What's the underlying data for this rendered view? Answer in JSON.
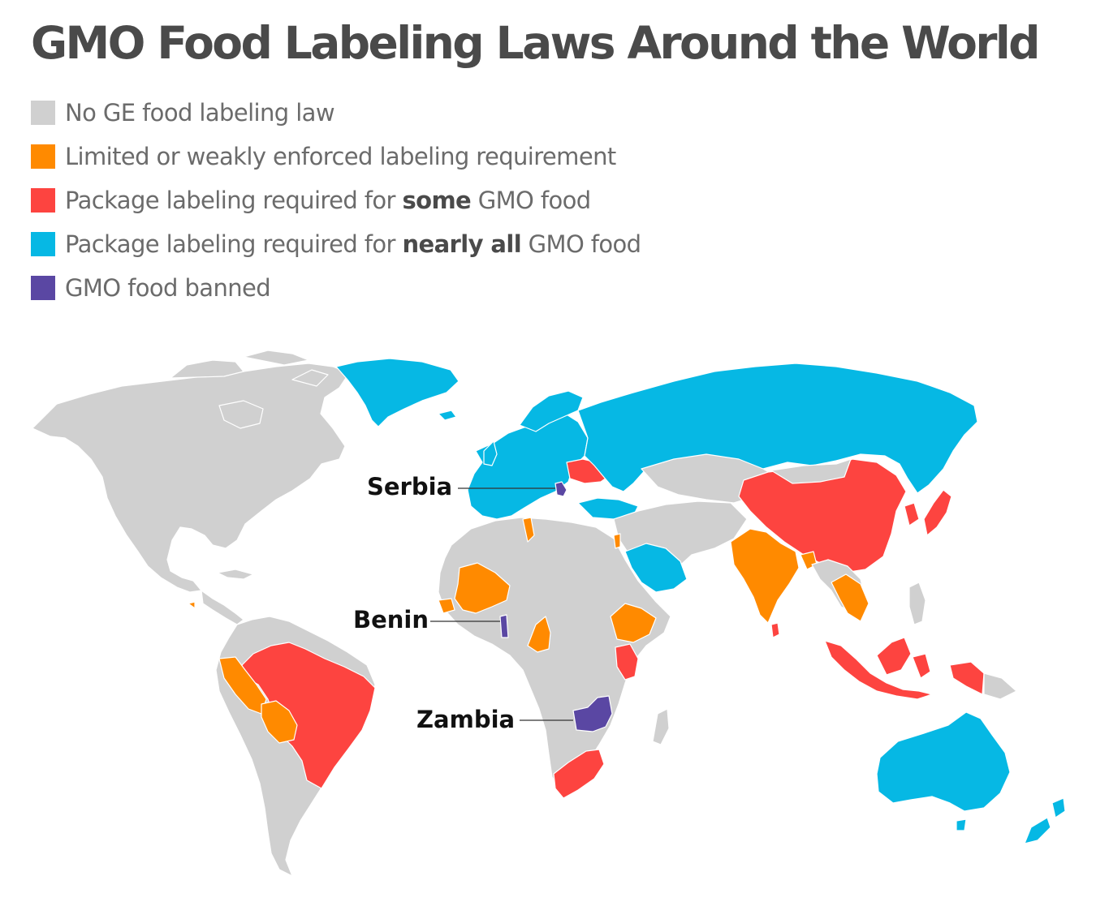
{
  "title": "GMO Food Labeling Laws Around the World",
  "legend": [
    {
      "key": "none",
      "color": "#d0d0d0",
      "parts": [
        {
          "text": "No GE food labeling law"
        }
      ]
    },
    {
      "key": "limited",
      "color": "#ff8a00",
      "parts": [
        {
          "text": "Limited or weakly enforced labeling requirement"
        }
      ]
    },
    {
      "key": "some",
      "color": "#fd4440",
      "parts": [
        {
          "text": "Package labeling required for "
        },
        {
          "text": "some",
          "bold": true
        },
        {
          "text": " GMO food"
        }
      ]
    },
    {
      "key": "nearly_all",
      "color": "#06b8e4",
      "parts": [
        {
          "text": "Package labeling required for "
        },
        {
          "text": "nearly all",
          "bold": true
        },
        {
          "text": " GMO food"
        }
      ]
    },
    {
      "key": "banned",
      "color": "#5a47a3",
      "parts": [
        {
          "text": "GMO food banned"
        }
      ]
    }
  ],
  "callouts": {
    "serbia": "Serbia",
    "benin": "Benin",
    "zambia": "Zambia"
  },
  "colors": {
    "none": "#d0d0d0",
    "limited": "#ff8a00",
    "some": "#fd4440",
    "nearly_all": "#06b8e4",
    "banned": "#5a47a3",
    "border": "#ffffff",
    "title": "#4a4a4a",
    "legend_text": "#6b6b6b"
  }
}
